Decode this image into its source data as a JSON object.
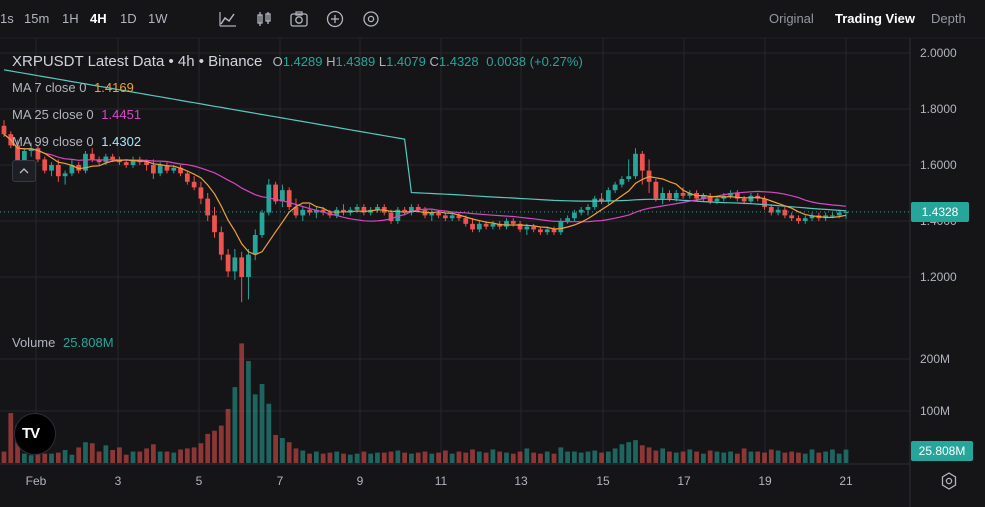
{
  "toolbar": {
    "timeframes": [
      "1s",
      "15m",
      "1H",
      "4H",
      "1D",
      "1W"
    ],
    "active_timeframe": "4H",
    "icons": [
      "chart-style-icon",
      "indicators-icon",
      "screenshot-icon",
      "add-icon",
      "settings-circle-icon"
    ],
    "views": [
      "Original",
      "Trading View",
      "Depth"
    ],
    "active_view": "Trading View"
  },
  "legend": {
    "title": "XRPUSDT Latest Data",
    "interval": "4h",
    "exchange": "Binance",
    "open_label": "O",
    "open": "1.4289",
    "high_label": "H",
    "high": "1.4389",
    "low_label": "L",
    "low": "1.4079",
    "close_label": "C",
    "close": "1.4328",
    "change": "0.0038",
    "change_pct": "(+0.27%)",
    "ma7_label": "MA 7 close 0",
    "ma7_value": "1.4169",
    "ma25_label": "MA 25 close 0",
    "ma25_value": "1.4451",
    "ma99_label": "MA 99 close 0",
    "ma99_value": "1.4302",
    "volume_label": "Volume",
    "volume_value": "25.808M",
    "logo": "TV"
  },
  "price_tag": "1.4328",
  "volume_tag": "25.808M",
  "colors": {
    "up": "#26a69a",
    "down": "#ef5350",
    "ma7": "#f0a13b",
    "ma25": "#d946c4",
    "ma99": "#59c7c0",
    "background": "#151518",
    "grid": "#26262b"
  },
  "chart_data": {
    "type": "candlestick",
    "title": "XRPUSDT Latest Data • 4h • Binance",
    "x_tick_labels": [
      "Feb",
      "3",
      "5",
      "7",
      "9",
      "11",
      "13",
      "15",
      "17",
      "19",
      "21"
    ],
    "price_axis_labels": [
      "2.0000",
      "1.8000",
      "1.6000",
      "1.4000",
      "1.2000"
    ],
    "volume_axis_labels": [
      "200M",
      "100M"
    ],
    "price_range": [
      1.1,
      2.05
    ],
    "volume_range": [
      0,
      240
    ],
    "volume_unit": "M",
    "last_price": 1.4328,
    "candles": [
      [
        1.74,
        1.76,
        1.7,
        1.71
      ],
      [
        1.71,
        1.72,
        1.66,
        1.67
      ],
      [
        1.67,
        1.69,
        1.55,
        1.6
      ],
      [
        1.6,
        1.66,
        1.58,
        1.65
      ],
      [
        1.65,
        1.68,
        1.63,
        1.66
      ],
      [
        1.66,
        1.67,
        1.61,
        1.62
      ],
      [
        1.62,
        1.63,
        1.57,
        1.58
      ],
      [
        1.58,
        1.61,
        1.56,
        1.6
      ],
      [
        1.6,
        1.62,
        1.54,
        1.56
      ],
      [
        1.56,
        1.58,
        1.53,
        1.57
      ],
      [
        1.57,
        1.62,
        1.56,
        1.6
      ],
      [
        1.6,
        1.61,
        1.57,
        1.58
      ],
      [
        1.58,
        1.65,
        1.57,
        1.64
      ],
      [
        1.64,
        1.66,
        1.61,
        1.62
      ],
      [
        1.62,
        1.63,
        1.6,
        1.61
      ],
      [
        1.61,
        1.64,
        1.6,
        1.63
      ],
      [
        1.63,
        1.64,
        1.61,
        1.62
      ],
      [
        1.62,
        1.63,
        1.6,
        1.61
      ],
      [
        1.61,
        1.62,
        1.59,
        1.6
      ],
      [
        1.6,
        1.63,
        1.59,
        1.62
      ],
      [
        1.62,
        1.63,
        1.6,
        1.61
      ],
      [
        1.61,
        1.62,
        1.58,
        1.6
      ],
      [
        1.6,
        1.62,
        1.55,
        1.57
      ],
      [
        1.57,
        1.61,
        1.56,
        1.6
      ],
      [
        1.6,
        1.61,
        1.57,
        1.58
      ],
      [
        1.58,
        1.6,
        1.57,
        1.59
      ],
      [
        1.59,
        1.6,
        1.56,
        1.57
      ],
      [
        1.57,
        1.58,
        1.53,
        1.54
      ],
      [
        1.54,
        1.56,
        1.51,
        1.52
      ],
      [
        1.52,
        1.54,
        1.46,
        1.48
      ],
      [
        1.48,
        1.5,
        1.4,
        1.42
      ],
      [
        1.42,
        1.45,
        1.34,
        1.36
      ],
      [
        1.36,
        1.38,
        1.26,
        1.28
      ],
      [
        1.28,
        1.3,
        1.2,
        1.22
      ],
      [
        1.22,
        1.3,
        1.19,
        1.27
      ],
      [
        1.27,
        1.29,
        1.11,
        1.2
      ],
      [
        1.2,
        1.3,
        1.12,
        1.28
      ],
      [
        1.28,
        1.37,
        1.26,
        1.35
      ],
      [
        1.35,
        1.44,
        1.34,
        1.43
      ],
      [
        1.43,
        1.55,
        1.42,
        1.53
      ],
      [
        1.53,
        1.54,
        1.46,
        1.47
      ],
      [
        1.47,
        1.53,
        1.45,
        1.51
      ],
      [
        1.51,
        1.52,
        1.44,
        1.45
      ],
      [
        1.45,
        1.48,
        1.41,
        1.42
      ],
      [
        1.42,
        1.45,
        1.4,
        1.44
      ],
      [
        1.44,
        1.46,
        1.42,
        1.43
      ],
      [
        1.43,
        1.45,
        1.41,
        1.44
      ],
      [
        1.44,
        1.45,
        1.42,
        1.43
      ],
      [
        1.43,
        1.44,
        1.41,
        1.42
      ],
      [
        1.42,
        1.45,
        1.41,
        1.44
      ],
      [
        1.44,
        1.46,
        1.42,
        1.43
      ],
      [
        1.43,
        1.45,
        1.42,
        1.44
      ],
      [
        1.44,
        1.46,
        1.43,
        1.45
      ],
      [
        1.45,
        1.46,
        1.42,
        1.43
      ],
      [
        1.43,
        1.45,
        1.42,
        1.44
      ],
      [
        1.44,
        1.46,
        1.43,
        1.45
      ],
      [
        1.45,
        1.46,
        1.42,
        1.43
      ],
      [
        1.43,
        1.44,
        1.39,
        1.4
      ],
      [
        1.4,
        1.45,
        1.39,
        1.44
      ],
      [
        1.44,
        1.45,
        1.42,
        1.43
      ],
      [
        1.43,
        1.46,
        1.42,
        1.45
      ],
      [
        1.45,
        1.46,
        1.43,
        1.44
      ],
      [
        1.44,
        1.45,
        1.41,
        1.42
      ],
      [
        1.42,
        1.44,
        1.4,
        1.43
      ],
      [
        1.43,
        1.44,
        1.41,
        1.42
      ],
      [
        1.42,
        1.43,
        1.4,
        1.41
      ],
      [
        1.41,
        1.43,
        1.4,
        1.42
      ],
      [
        1.42,
        1.43,
        1.4,
        1.41
      ],
      [
        1.41,
        1.42,
        1.38,
        1.39
      ],
      [
        1.39,
        1.41,
        1.36,
        1.37
      ],
      [
        1.37,
        1.4,
        1.36,
        1.39
      ],
      [
        1.39,
        1.4,
        1.37,
        1.38
      ],
      [
        1.38,
        1.4,
        1.37,
        1.39
      ],
      [
        1.39,
        1.4,
        1.37,
        1.38
      ],
      [
        1.38,
        1.41,
        1.37,
        1.4
      ],
      [
        1.4,
        1.41,
        1.38,
        1.39
      ],
      [
        1.39,
        1.4,
        1.36,
        1.37
      ],
      [
        1.37,
        1.39,
        1.35,
        1.38
      ],
      [
        1.38,
        1.39,
        1.36,
        1.37
      ],
      [
        1.37,
        1.38,
        1.35,
        1.36
      ],
      [
        1.36,
        1.38,
        1.35,
        1.37
      ],
      [
        1.37,
        1.38,
        1.35,
        1.36
      ],
      [
        1.36,
        1.41,
        1.35,
        1.4
      ],
      [
        1.4,
        1.42,
        1.39,
        1.41
      ],
      [
        1.41,
        1.44,
        1.4,
        1.43
      ],
      [
        1.43,
        1.45,
        1.42,
        1.44
      ],
      [
        1.44,
        1.46,
        1.42,
        1.45
      ],
      [
        1.45,
        1.49,
        1.44,
        1.48
      ],
      [
        1.48,
        1.5,
        1.46,
        1.47
      ],
      [
        1.47,
        1.52,
        1.46,
        1.51
      ],
      [
        1.51,
        1.54,
        1.5,
        1.53
      ],
      [
        1.53,
        1.56,
        1.52,
        1.55
      ],
      [
        1.55,
        1.62,
        1.54,
        1.56
      ],
      [
        1.56,
        1.66,
        1.55,
        1.64
      ],
      [
        1.64,
        1.65,
        1.53,
        1.58
      ],
      [
        1.58,
        1.62,
        1.5,
        1.54
      ],
      [
        1.54,
        1.55,
        1.47,
        1.48
      ],
      [
        1.48,
        1.52,
        1.46,
        1.5
      ],
      [
        1.5,
        1.51,
        1.47,
        1.48
      ],
      [
        1.48,
        1.51,
        1.47,
        1.5
      ],
      [
        1.5,
        1.52,
        1.48,
        1.49
      ],
      [
        1.49,
        1.51,
        1.48,
        1.5
      ],
      [
        1.5,
        1.51,
        1.47,
        1.48
      ],
      [
        1.48,
        1.5,
        1.47,
        1.49
      ],
      [
        1.49,
        1.5,
        1.46,
        1.47
      ],
      [
        1.47,
        1.49,
        1.46,
        1.48
      ],
      [
        1.48,
        1.5,
        1.47,
        1.49
      ],
      [
        1.49,
        1.51,
        1.48,
        1.5
      ],
      [
        1.5,
        1.51,
        1.47,
        1.48
      ],
      [
        1.48,
        1.49,
        1.46,
        1.47
      ],
      [
        1.47,
        1.5,
        1.46,
        1.49
      ],
      [
        1.49,
        1.5,
        1.47,
        1.48
      ],
      [
        1.48,
        1.49,
        1.44,
        1.45
      ],
      [
        1.45,
        1.46,
        1.42,
        1.43
      ],
      [
        1.43,
        1.45,
        1.42,
        1.44
      ],
      [
        1.44,
        1.45,
        1.41,
        1.42
      ],
      [
        1.42,
        1.43,
        1.4,
        1.41
      ],
      [
        1.41,
        1.42,
        1.39,
        1.4
      ],
      [
        1.4,
        1.42,
        1.39,
        1.41
      ],
      [
        1.41,
        1.43,
        1.4,
        1.42
      ],
      [
        1.42,
        1.43,
        1.4,
        1.41
      ],
      [
        1.41,
        1.43,
        1.4,
        1.42
      ],
      [
        1.42,
        1.43,
        1.41,
        1.42
      ],
      [
        1.42,
        1.44,
        1.41,
        1.43
      ],
      [
        1.4289,
        1.4389,
        1.4079,
        1.4328
      ]
    ],
    "volume": [
      22,
      96,
      72,
      18,
      15,
      22,
      18,
      18,
      20,
      25,
      16,
      30,
      40,
      38,
      22,
      34,
      25,
      30,
      16,
      22,
      22,
      28,
      36,
      22,
      22,
      20,
      26,
      28,
      30,
      38,
      56,
      62,
      72,
      104,
      146,
      230,
      196,
      132,
      152,
      114,
      54,
      48,
      40,
      28,
      24,
      18,
      22,
      18,
      20,
      22,
      18,
      16,
      18,
      22,
      18,
      20,
      20,
      22,
      24,
      20,
      18,
      20,
      22,
      18,
      20,
      24,
      18,
      22,
      20,
      26,
      22,
      20,
      26,
      22,
      20,
      18,
      22,
      28,
      20,
      18,
      22,
      18,
      30,
      22,
      22,
      20,
      22,
      24,
      20,
      22,
      28,
      36,
      40,
      44,
      34,
      30,
      24,
      28,
      22,
      20,
      22,
      26,
      22,
      18,
      24,
      22,
      20,
      22,
      18,
      28,
      22,
      22,
      20,
      26,
      24,
      20,
      22,
      20,
      18,
      26,
      20,
      22,
      26,
      18,
      25.8
    ],
    "series": [
      {
        "name": "MA 7 close 0"
      },
      {
        "name": "MA 25 close 0"
      },
      {
        "name": "MA 99 close 0"
      }
    ]
  }
}
